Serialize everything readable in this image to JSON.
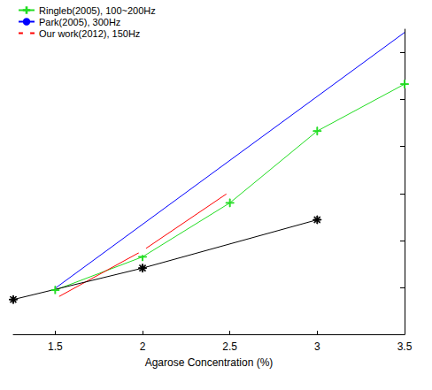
{
  "chart_data": {
    "type": "line",
    "xlabel": "Agarose Concentration (%)",
    "xlim": [
      1.26,
      3.5
    ],
    "xticks": [
      1.5,
      2,
      2.5,
      3,
      3.5
    ],
    "ylim": [
      0,
      6.5
    ],
    "yticks": [
      0,
      1,
      2,
      3,
      4,
      5,
      6
    ],
    "tick_labels": "x",
    "grid": false,
    "legend": "upper left",
    "series": [
      {
        "name": "Ringleb(2005), 100~200Hz",
        "color": "#22dd22",
        "marker": "plus",
        "line_style": "solid",
        "x": [
          1.5,
          2,
          2.5,
          3,
          3.5
        ],
        "values": [
          0.94,
          1.65,
          2.8,
          4.33,
          5.33
        ]
      },
      {
        "name": "Park(2005), 300Hz",
        "color": "#0000ff",
        "marker": "none",
        "line_style": "solid",
        "x": [
          1.5,
          3.5
        ],
        "values": [
          0.98,
          6.43
        ]
      },
      {
        "name": "Our work(2012), 150Hz",
        "color": "#ff0000",
        "marker": "circle",
        "line_style": "solid",
        "x": [
          1.5,
          2,
          2.5
        ],
        "values": [
          0.76,
          1.78,
          3.04
        ]
      },
      {
        "color": "#000000",
        "marker": "star",
        "line_style": "solid",
        "x": [
          1.26,
          2,
          3
        ],
        "values": [
          0.74,
          1.41,
          2.44
        ]
      }
    ]
  }
}
